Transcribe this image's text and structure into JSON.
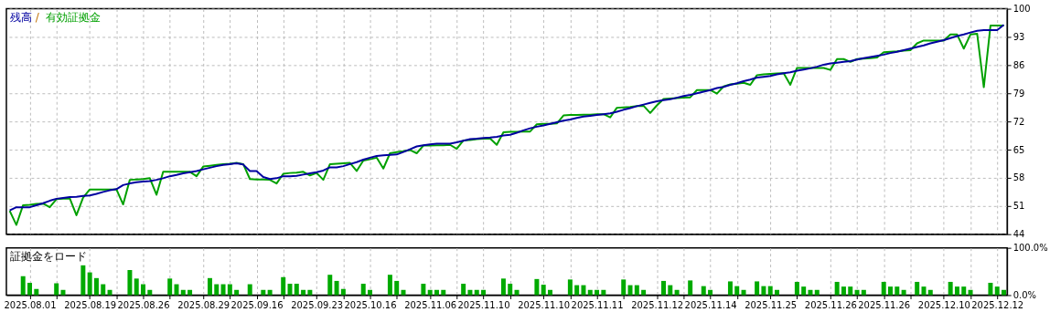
{
  "chart_data": [
    {
      "type": "line",
      "legend": "top left",
      "annotations": [
        "/"
      ],
      "grid": true,
      "tick_labels": "y",
      "categories": [
        null,
        null,
        null,
        "2025.08.01",
        null,
        null,
        null,
        null,
        null,
        null,
        null,
        null,
        "2025.08.19",
        null,
        null,
        null,
        null,
        null,
        null,
        null,
        "2025.08.26",
        null,
        null,
        null,
        null,
        null,
        null,
        null,
        null,
        "2025.08.29",
        null,
        null,
        null,
        null,
        null,
        null,
        null,
        "2025.09.16",
        null,
        null,
        null,
        null,
        null,
        null,
        null,
        null,
        "2025.09.23",
        null,
        null,
        null,
        null,
        null,
        null,
        null,
        "2025.10.16",
        null,
        null,
        null,
        null,
        null,
        null,
        null,
        null,
        "2025.11.06",
        null,
        null,
        null,
        null,
        null,
        null,
        null,
        "2025.11.10",
        null,
        null,
        null,
        null,
        null,
        null,
        null,
        null,
        "2025.11.10",
        null,
        null,
        null,
        null,
        null,
        null,
        null,
        "2025.11.11",
        null,
        null,
        null,
        null,
        null,
        null,
        null,
        null,
        "2025.11.12",
        null,
        null,
        null,
        null,
        null,
        null,
        null,
        "2025.11.14",
        null,
        null,
        null,
        null,
        null,
        null,
        null,
        null,
        "2025.11.25",
        null,
        null,
        null,
        null,
        null,
        null,
        null,
        null,
        "2025.11.26",
        null,
        null,
        null,
        null,
        null,
        null,
        null,
        "2025.11.26",
        null,
        null,
        null,
        null,
        null,
        null,
        null,
        null,
        "2025.12.10",
        null,
        null,
        null,
        null,
        null,
        null,
        null,
        "2025.12.12",
        null
      ],
      "ylim": [
        44,
        100
      ],
      "yticks": [
        44,
        51,
        58,
        65,
        72,
        79,
        86,
        93,
        100
      ],
      "series": [
        {
          "name": "残高",
          "color": "#0000a0",
          "values": [
            49.9,
            50.7,
            50.7,
            50.7,
            51.2,
            51.7,
            52.3,
            52.8,
            53.0,
            53.2,
            53.3,
            53.5,
            53.6,
            54.0,
            54.5,
            54.9,
            55.2,
            56.2,
            56.6,
            56.9,
            57.1,
            57.2,
            57.5,
            57.9,
            58.4,
            58.7,
            59.1,
            59.4,
            59.7,
            60.1,
            60.5,
            60.9,
            61.2,
            61.4,
            61.6,
            61.3,
            59.7,
            59.7,
            58.2,
            57.7,
            57.9,
            58.4,
            58.4,
            58.5,
            58.8,
            59.1,
            59.4,
            59.8,
            60.6,
            60.6,
            60.9,
            61.4,
            61.9,
            62.5,
            63.0,
            63.4,
            63.6,
            63.7,
            63.8,
            64.4,
            65.1,
            65.8,
            66.1,
            66.3,
            66.5,
            66.5,
            66.5,
            66.8,
            67.2,
            67.6,
            67.7,
            67.9,
            68.0,
            68.2,
            68.5,
            68.7,
            69.2,
            69.8,
            70.3,
            70.7,
            71.0,
            71.4,
            71.8,
            72.2,
            72.5,
            72.9,
            73.2,
            73.4,
            73.6,
            73.8,
            74.0,
            74.4,
            74.9,
            75.3,
            75.8,
            76.2,
            76.6,
            77.0,
            77.3,
            77.5,
            77.9,
            78.3,
            78.6,
            79.0,
            79.4,
            79.8,
            80.3,
            80.6,
            81.1,
            81.5,
            82.0,
            82.4,
            82.9,
            83.1,
            83.3,
            83.7,
            84.0,
            84.2,
            84.6,
            84.9,
            85.2,
            85.6,
            86.1,
            86.4,
            86.6,
            86.8,
            87.0,
            87.4,
            87.7,
            88.0,
            88.3,
            88.6,
            89.0,
            89.3,
            89.7,
            90.1,
            90.5,
            90.9,
            91.4,
            91.8,
            92.2,
            92.7,
            93.2,
            93.6,
            94.1,
            94.5,
            94.7,
            94.7,
            94.7,
            96.0
          ]
        },
        {
          "name": "有効証拠金",
          "color": "#00a000",
          "values": [
            49.8,
            46.3,
            51.2,
            51.3,
            51.5,
            51.6,
            50.7,
            52.7,
            52.8,
            52.9,
            48.7,
            53.1,
            55.1,
            55.1,
            55.1,
            55.1,
            55.1,
            51.4,
            57.5,
            57.6,
            57.7,
            57.9,
            53.8,
            59.5,
            59.5,
            59.5,
            59.5,
            59.5,
            58.4,
            60.8,
            61.0,
            61.2,
            61.4,
            61.5,
            61.7,
            61.4,
            57.7,
            57.6,
            57.6,
            57.5,
            56.6,
            59.0,
            59.2,
            59.3,
            59.5,
            58.6,
            59.2,
            57.5,
            61.4,
            61.5,
            61.6,
            61.7,
            59.7,
            62.3,
            62.6,
            63.0,
            60.3,
            64.1,
            64.4,
            64.6,
            64.9,
            64.1,
            66.0,
            66.0,
            66.1,
            66.1,
            66.2,
            65.2,
            67.3,
            67.4,
            67.6,
            67.7,
            67.8,
            66.2,
            69.3,
            69.4,
            69.4,
            69.5,
            69.5,
            71.3,
            71.4,
            71.4,
            71.5,
            73.5,
            73.6,
            73.6,
            73.7,
            73.7,
            73.8,
            73.8,
            73.0,
            75.4,
            75.5,
            75.6,
            75.8,
            75.9,
            74.1,
            76.0,
            77.6,
            77.7,
            77.8,
            77.9,
            78.0,
            79.8,
            79.8,
            79.8,
            78.9,
            80.7,
            81.2,
            81.4,
            81.6,
            81.1,
            83.5,
            83.7,
            83.8,
            83.9,
            84.0,
            81.1,
            85.3,
            85.3,
            85.3,
            85.3,
            85.3,
            84.8,
            87.5,
            87.5,
            86.8,
            87.5,
            87.6,
            87.7,
            87.9,
            89.2,
            89.3,
            89.4,
            89.6,
            89.7,
            91.4,
            92.1,
            92.1,
            92.1,
            92.1,
            93.6,
            93.6,
            90.1,
            93.6,
            93.8,
            80.5,
            95.8,
            95.8,
            95.8
          ]
        }
      ]
    },
    {
      "type": "bar",
      "title": "証拠金をロード",
      "grid": "x",
      "color": "#00aa00",
      "categories": [
        null,
        null,
        null,
        "2025.08.01",
        null,
        null,
        null,
        null,
        null,
        null,
        null,
        null,
        "2025.08.19",
        null,
        null,
        null,
        null,
        null,
        null,
        null,
        "2025.08.26",
        null,
        null,
        null,
        null,
        null,
        null,
        null,
        null,
        "2025.08.29",
        null,
        null,
        null,
        null,
        null,
        null,
        null,
        "2025.09.16",
        null,
        null,
        null,
        null,
        null,
        null,
        null,
        null,
        "2025.09.23",
        null,
        null,
        null,
        null,
        null,
        null,
        null,
        "2025.10.16",
        null,
        null,
        null,
        null,
        null,
        null,
        null,
        null,
        "2025.11.06",
        null,
        null,
        null,
        null,
        null,
        null,
        null,
        "2025.11.10",
        null,
        null,
        null,
        null,
        null,
        null,
        null,
        null,
        "2025.11.10",
        null,
        null,
        null,
        null,
        null,
        null,
        null,
        "2025.11.11",
        null,
        null,
        null,
        null,
        null,
        null,
        null,
        null,
        "2025.11.12",
        null,
        null,
        null,
        null,
        null,
        null,
        null,
        "2025.11.14",
        null,
        null,
        null,
        null,
        null,
        null,
        null,
        null,
        "2025.11.25",
        null,
        null,
        null,
        null,
        null,
        null,
        null,
        null,
        "2025.11.26",
        null,
        null,
        null,
        null,
        null,
        null,
        null,
        "2025.11.26",
        null,
        null,
        null,
        null,
        null,
        null,
        null,
        null,
        "2025.12.10",
        null,
        null,
        null,
        null,
        null,
        null,
        null,
        "2025.12.12",
        null
      ],
      "ylim": [
        0,
        100
      ],
      "yticks": [
        {
          "value": 0,
          "label": "0.0%"
        },
        {
          "value": 100,
          "label": "100.0%"
        }
      ],
      "values": [
        null,
        null,
        40,
        26,
        13,
        null,
        null,
        25,
        11,
        null,
        null,
        63,
        48,
        36,
        23,
        11,
        null,
        null,
        53,
        35,
        23,
        11,
        null,
        null,
        35,
        23,
        11,
        11,
        null,
        null,
        36,
        23,
        23,
        23,
        11,
        null,
        23,
        null,
        11,
        11,
        null,
        38,
        24,
        24,
        11,
        11,
        null,
        null,
        43,
        30,
        13,
        null,
        null,
        24,
        11,
        null,
        null,
        43,
        30,
        11,
        null,
        null,
        24,
        11,
        11,
        11,
        null,
        null,
        24,
        11,
        11,
        11,
        null,
        null,
        35,
        24,
        11,
        null,
        null,
        34,
        22,
        11,
        null,
        null,
        33,
        21,
        21,
        11,
        11,
        11,
        null,
        null,
        33,
        21,
        21,
        11,
        null,
        null,
        30,
        21,
        11,
        null,
        31,
        null,
        19,
        11,
        null,
        null,
        29,
        19,
        11,
        null,
        29,
        19,
        19,
        11,
        null,
        null,
        28,
        18,
        11,
        11,
        null,
        null,
        28,
        18,
        18,
        11,
        11,
        null,
        null,
        28,
        18,
        18,
        11,
        null,
        28,
        18,
        11,
        null,
        null,
        28,
        18,
        18,
        11,
        null,
        null,
        26,
        18,
        11
      ]
    }
  ]
}
